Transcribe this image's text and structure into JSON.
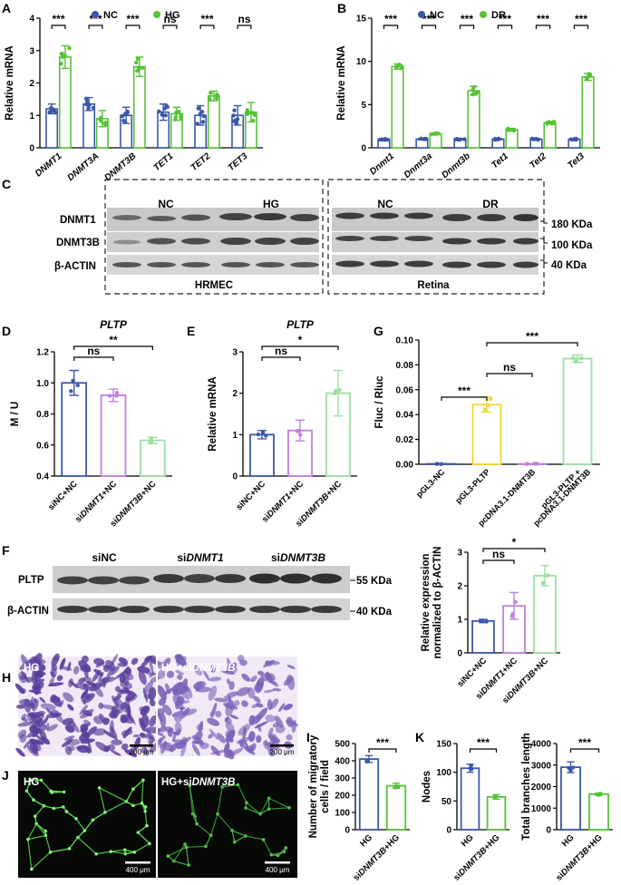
{
  "panel_letters": {
    "A": "A",
    "B": "B",
    "C": "C",
    "D": "D",
    "E": "E",
    "F": "F",
    "G": "G",
    "H": "H",
    "I": "I",
    "J": "J",
    "K": "K"
  },
  "colors": {
    "blue": "#3b57a7",
    "green": "#55c337",
    "violet": "#c07fe0",
    "yellow": "#f2d53a",
    "lightgreen": "#9ce0a1"
  },
  "blots": {
    "C_left": {
      "groups": [
        "NC",
        "HG"
      ],
      "rows": [
        "DNMT1",
        "DNMT3B",
        "β-ACTIN"
      ],
      "caption": "HRMEC"
    },
    "C_right": {
      "groups": [
        "NC",
        "DR"
      ],
      "sizes": [
        "180 KDa",
        "100 KDa",
        "40 KDa"
      ],
      "caption": "Retina"
    },
    "F": {
      "groups": [
        "siNC",
        "si",
        "DNMT1",
        "si",
        "DNMT3B"
      ],
      "rows": [
        "PLTP",
        "β-ACTIN"
      ],
      "sizes": [
        "55 KDa",
        "40 KDa"
      ]
    }
  },
  "images": {
    "H": {
      "left_label": "HG",
      "right_label": "HG+si",
      "right_gene": "DNMT3B",
      "scale": "200 μm"
    },
    "J": {
      "left_label": "HG",
      "right_label": "HG+si",
      "right_gene": "DNMT3B",
      "scale": "400 μm"
    }
  },
  "chart_data": [
    {
      "id": "A",
      "type": "bar",
      "ylabel": "Relative mRNA",
      "ylim": [
        0,
        4
      ],
      "yticks": [
        0,
        1,
        2,
        3,
        4
      ],
      "categories": [
        "DNMT1",
        "DNMT3A",
        "DNMT3B",
        "TET1",
        "TET2",
        "TET3"
      ],
      "series": [
        {
          "name": "NC",
          "values": [
            1.2,
            1.35,
            1.0,
            1.1,
            1.0,
            1.0
          ],
          "err": [
            0.15,
            0.2,
            0.25,
            0.25,
            0.3,
            0.3
          ]
        },
        {
          "name": "HG",
          "values": [
            2.8,
            0.9,
            2.5,
            1.05,
            1.6,
            1.1
          ],
          "err": [
            0.35,
            0.25,
            0.3,
            0.2,
            0.15,
            0.3
          ]
        }
      ],
      "significance": [
        "***",
        "***",
        "***",
        "ns",
        "***",
        "ns"
      ]
    },
    {
      "id": "B",
      "type": "bar",
      "ylabel": "Relative mRNA",
      "ylim": [
        0,
        15
      ],
      "yticks": [
        0,
        5,
        10,
        15
      ],
      "categories": [
        "Dnmt1",
        "Dnmt3a",
        "Dnmt3b",
        "Tet1",
        "Tet2",
        "Tet3"
      ],
      "series": [
        {
          "name": "NC",
          "values": [
            1.0,
            1.0,
            1.0,
            1.0,
            1.0,
            1.0
          ],
          "err": [
            0.08,
            0.08,
            0.08,
            0.08,
            0.08,
            0.08
          ]
        },
        {
          "name": "DR",
          "values": [
            9.4,
            1.6,
            6.6,
            2.1,
            2.9,
            8.2
          ],
          "err": [
            0.3,
            0.1,
            0.5,
            0.15,
            0.15,
            0.4
          ]
        }
      ],
      "significance": [
        "***",
        "***",
        "***",
        "***",
        "***",
        "***"
      ]
    },
    {
      "id": "D",
      "type": "bar",
      "title": "PLTP",
      "ylabel": "M / U",
      "ylim": [
        0.4,
        1.2
      ],
      "yticks": [
        0.4,
        0.6,
        0.8,
        1.0,
        1.2
      ],
      "categories": [
        "siNC+NC",
        "siDNMT1+NC",
        "siDNMT3B+NC"
      ],
      "values": [
        1.0,
        0.92,
        0.63
      ],
      "err": [
        0.08,
        0.04,
        0.02
      ],
      "comparisons": [
        {
          "from": 0,
          "to": 1,
          "label": "ns"
        },
        {
          "from": 0,
          "to": 2,
          "label": "**"
        }
      ]
    },
    {
      "id": "E",
      "type": "bar",
      "title": "PLTP",
      "ylabel": "Relative mRNA",
      "ylim": [
        0,
        3
      ],
      "yticks": [
        0,
        1,
        2,
        3
      ],
      "categories": [
        "siNC+NC",
        "siDNMT1+NC",
        "siDNMT3B+NC"
      ],
      "values": [
        1.0,
        1.1,
        2.0
      ],
      "err": [
        0.1,
        0.25,
        0.55
      ],
      "comparisons": [
        {
          "from": 0,
          "to": 1,
          "label": "ns"
        },
        {
          "from": 0,
          "to": 2,
          "label": "*"
        }
      ]
    },
    {
      "id": "G",
      "type": "bar",
      "ylabel": "Fluc / Rluc",
      "ylim": [
        0,
        0.1
      ],
      "yticks": [
        0.0,
        0.02,
        0.04,
        0.06,
        0.08,
        0.1
      ],
      "categories": [
        "pGL3-NC",
        "pGL3-PLTP",
        "pcDNA3.1-DNMT3B",
        "pGL3-PLTP +\npcDNA3.1-DNMT3B"
      ],
      "values": [
        0.0003,
        0.048,
        0.0003,
        0.085
      ],
      "err": [
        0.0002,
        0.006,
        0.0002,
        0.003
      ],
      "comparisons": [
        {
          "from": 1,
          "to": 2,
          "label": "ns"
        },
        {
          "from": 1,
          "to": 3,
          "label": "***"
        },
        {
          "from": 0,
          "to": 1,
          "label": "***"
        }
      ]
    },
    {
      "id": "F",
      "type": "bar",
      "ylabel": "Relative expression\nnormalized to β-ACTIN",
      "ylim": [
        0,
        3
      ],
      "yticks": [
        0,
        1,
        2,
        3
      ],
      "categories": [
        "siNC+NC",
        "siDNMT1+NC",
        "siDNMT3B+NC"
      ],
      "values": [
        0.95,
        1.4,
        2.3
      ],
      "err": [
        0.05,
        0.4,
        0.3
      ],
      "comparisons": [
        {
          "from": 0,
          "to": 1,
          "label": "ns"
        },
        {
          "from": 0,
          "to": 2,
          "label": "*"
        }
      ]
    },
    {
      "id": "I",
      "type": "bar",
      "ylabel": "Number of migratory\ncells / field",
      "ylim": [
        0,
        500
      ],
      "yticks": [
        0,
        100,
        200,
        300,
        400,
        500
      ],
      "categories": [
        "HG",
        "siDNMT3B+HG"
      ],
      "values": [
        410,
        255
      ],
      "err": [
        20,
        15
      ],
      "comparisons": [
        {
          "from": 0,
          "to": 1,
          "label": "***"
        }
      ]
    },
    {
      "id": "K1",
      "type": "bar",
      "ylabel": "Nodes",
      "ylim": [
        0,
        150
      ],
      "yticks": [
        0,
        50,
        100,
        150
      ],
      "categories": [
        "HG",
        "siDNMT3B+HG"
      ],
      "values": [
        107,
        57
      ],
      "err": [
        7,
        4
      ],
      "comparisons": [
        {
          "from": 0,
          "to": 1,
          "label": "***"
        }
      ]
    },
    {
      "id": "K2",
      "type": "bar",
      "ylabel": "Total branches length",
      "ylim": [
        0,
        4000
      ],
      "yticks": [
        0,
        1000,
        2000,
        3000,
        4000
      ],
      "categories": [
        "HG",
        "siDNMT3B+HG"
      ],
      "values": [
        2900,
        1650
      ],
      "err": [
        250,
        50
      ],
      "comparisons": [
        {
          "from": 0,
          "to": 1,
          "label": "***"
        }
      ]
    }
  ]
}
